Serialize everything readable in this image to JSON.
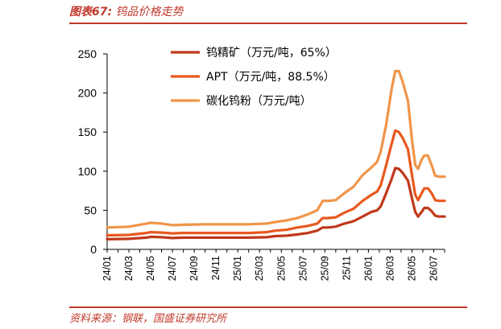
{
  "header": {
    "figure_number": "图表67:",
    "figure_title": "钨品价格走势"
  },
  "footer": {
    "source": "资料来源：钢联，国盛证券研究所"
  },
  "chart_data": {
    "type": "line",
    "title": "钨品价格走势",
    "xlabel": "",
    "ylabel": "",
    "ylim": [
      0,
      250
    ],
    "yticks": [
      0,
      50,
      100,
      150,
      200,
      250
    ],
    "xlim": [
      "2024-01",
      "2026-08"
    ],
    "xticks": [
      "24/01",
      "24/03",
      "24/05",
      "24/07",
      "24/09",
      "24/11",
      "25/01",
      "25/03",
      "25/05",
      "25/07",
      "25/09",
      "25/11",
      "26/01",
      "26/03",
      "26/05",
      "26/07"
    ],
    "grid": false,
    "legend_position": "top-center",
    "series": [
      {
        "name": "钨精矿（万元/吨，65%）",
        "color": "#c0391b",
        "points": [
          [
            "2024-01-01",
            13
          ],
          [
            "2024-03-01",
            13.5
          ],
          [
            "2024-04-20",
            15
          ],
          [
            "2024-05-01",
            16
          ],
          [
            "2024-06-01",
            15.5
          ],
          [
            "2024-07-01",
            14.5
          ],
          [
            "2024-08-01",
            15
          ],
          [
            "2024-10-01",
            15
          ],
          [
            "2024-12-01",
            15
          ],
          [
            "2025-02-01",
            15
          ],
          [
            "2025-03-20",
            15.5
          ],
          [
            "2025-04-15",
            17
          ],
          [
            "2025-05-15",
            17.5
          ],
          [
            "2025-06-15",
            19
          ],
          [
            "2025-07-15",
            21
          ],
          [
            "2025-08-10",
            24
          ],
          [
            "2025-08-25",
            28
          ],
          [
            "2025-09-10",
            28
          ],
          [
            "2025-10-01",
            29
          ],
          [
            "2025-10-25",
            33
          ],
          [
            "2025-11-20",
            36
          ],
          [
            "2025-12-15",
            42
          ],
          [
            "2026-01-10",
            48
          ],
          [
            "2026-01-25",
            50
          ],
          [
            "2026-02-05",
            55
          ],
          [
            "2026-02-20",
            72
          ],
          [
            "2026-03-05",
            90
          ],
          [
            "2026-03-15",
            104
          ],
          [
            "2026-03-25",
            103
          ],
          [
            "2026-04-05",
            98
          ],
          [
            "2026-04-20",
            88
          ],
          [
            "2026-05-01",
            65
          ],
          [
            "2026-05-10",
            48
          ],
          [
            "2026-05-18",
            42
          ],
          [
            "2026-05-28",
            48
          ],
          [
            "2026-06-05",
            53
          ],
          [
            "2026-06-15",
            53
          ],
          [
            "2026-06-25",
            49
          ],
          [
            "2026-07-05",
            43
          ],
          [
            "2026-07-15",
            42
          ],
          [
            "2026-08-01",
            42
          ]
        ]
      },
      {
        "name": "APT（万元/吨，88.5%）",
        "color": "#e8581f",
        "points": [
          [
            "2024-01-01",
            18
          ],
          [
            "2024-03-01",
            18.5
          ],
          [
            "2024-04-20",
            21
          ],
          [
            "2024-05-01",
            22
          ],
          [
            "2024-06-01",
            21.5
          ],
          [
            "2024-07-01",
            20.5
          ],
          [
            "2024-08-01",
            21
          ],
          [
            "2024-10-01",
            21
          ],
          [
            "2024-12-01",
            21
          ],
          [
            "2025-02-01",
            21
          ],
          [
            "2025-03-20",
            22
          ],
          [
            "2025-04-15",
            24
          ],
          [
            "2025-05-15",
            25
          ],
          [
            "2025-06-15",
            28
          ],
          [
            "2025-07-15",
            30
          ],
          [
            "2025-08-10",
            33
          ],
          [
            "2025-08-25",
            40
          ],
          [
            "2025-09-10",
            40
          ],
          [
            "2025-10-01",
            41
          ],
          [
            "2025-10-25",
            47
          ],
          [
            "2025-11-20",
            52
          ],
          [
            "2025-12-15",
            62
          ],
          [
            "2026-01-10",
            70
          ],
          [
            "2026-01-25",
            74
          ],
          [
            "2026-02-05",
            82
          ],
          [
            "2026-02-20",
            108
          ],
          [
            "2026-03-05",
            135
          ],
          [
            "2026-03-15",
            152
          ],
          [
            "2026-03-25",
            150
          ],
          [
            "2026-04-05",
            143
          ],
          [
            "2026-04-20",
            128
          ],
          [
            "2026-05-01",
            95
          ],
          [
            "2026-05-10",
            70
          ],
          [
            "2026-05-18",
            63
          ],
          [
            "2026-05-28",
            72
          ],
          [
            "2026-06-05",
            78
          ],
          [
            "2026-06-15",
            78
          ],
          [
            "2026-06-25",
            72
          ],
          [
            "2026-07-05",
            63
          ],
          [
            "2026-07-15",
            62
          ],
          [
            "2026-08-01",
            62
          ]
        ]
      },
      {
        "name": "碳化钨粉（万元/吨）",
        "color": "#f0954a",
        "points": [
          [
            "2024-01-01",
            28
          ],
          [
            "2024-03-01",
            29
          ],
          [
            "2024-04-20",
            33
          ],
          [
            "2024-05-01",
            34
          ],
          [
            "2024-06-01",
            33
          ],
          [
            "2024-07-01",
            31
          ],
          [
            "2024-08-01",
            31.5
          ],
          [
            "2024-10-01",
            32
          ],
          [
            "2024-12-01",
            32
          ],
          [
            "2025-02-01",
            32
          ],
          [
            "2025-03-20",
            33
          ],
          [
            "2025-04-15",
            35
          ],
          [
            "2025-05-15",
            37
          ],
          [
            "2025-06-15",
            40
          ],
          [
            "2025-07-15",
            45
          ],
          [
            "2025-08-10",
            50
          ],
          [
            "2025-08-25",
            62
          ],
          [
            "2025-09-10",
            62
          ],
          [
            "2025-10-01",
            63
          ],
          [
            "2025-10-25",
            72
          ],
          [
            "2025-11-20",
            80
          ],
          [
            "2025-12-15",
            95
          ],
          [
            "2026-01-10",
            105
          ],
          [
            "2026-01-25",
            112
          ],
          [
            "2026-02-05",
            125
          ],
          [
            "2026-02-20",
            160
          ],
          [
            "2026-03-05",
            205
          ],
          [
            "2026-03-15",
            228
          ],
          [
            "2026-03-25",
            228
          ],
          [
            "2026-04-05",
            215
          ],
          [
            "2026-04-20",
            190
          ],
          [
            "2026-05-01",
            140
          ],
          [
            "2026-05-10",
            108
          ],
          [
            "2026-05-18",
            103
          ],
          [
            "2026-05-28",
            115
          ],
          [
            "2026-06-05",
            120
          ],
          [
            "2026-06-15",
            120
          ],
          [
            "2026-06-25",
            108
          ],
          [
            "2026-07-05",
            94
          ],
          [
            "2026-07-15",
            93
          ],
          [
            "2026-08-01",
            93
          ]
        ]
      }
    ]
  }
}
